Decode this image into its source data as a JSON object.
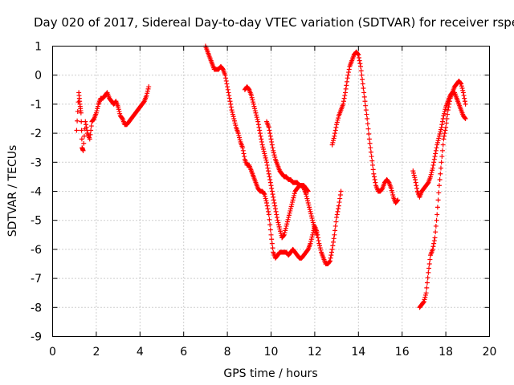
{
  "chart_data": {
    "type": "scatter",
    "title": "Day 020 of 2017, Sidereal Day-to-day VTEC variation (SDTVAR) for receiver rspe",
    "xlabel": "GPS time / hours",
    "ylabel": "SDTVAR / TECUs",
    "xlim": [
      0,
      20
    ],
    "ylim": [
      -9,
      1
    ],
    "xticks": [
      0,
      2,
      4,
      6,
      8,
      10,
      12,
      14,
      16,
      18,
      20
    ],
    "yticks": [
      1,
      0,
      -1,
      -2,
      -3,
      -4,
      -5,
      -6,
      -7,
      -8,
      -9
    ],
    "grid": true,
    "marker": "plus",
    "color": "#ff0000",
    "series": [
      {
        "name": "segment-1",
        "x": [
          1.1,
          1.2,
          1.25,
          1.3,
          1.35,
          1.4,
          1.5,
          1.6,
          1.7,
          1.8,
          1.9,
          2.0,
          2.1,
          2.2,
          2.3,
          2.4,
          2.5,
          2.6,
          2.7,
          2.8,
          2.9,
          3.0,
          3.1,
          3.2,
          3.3,
          3.4,
          3.5,
          3.6,
          3.7,
          3.8,
          3.9,
          4.0,
          4.1,
          4.2,
          4.3,
          4.4
        ],
        "y": [
          -1.9,
          -0.6,
          -1.0,
          -1.3,
          -2.5,
          -2.6,
          -1.6,
          -2.0,
          -2.2,
          -1.6,
          -1.5,
          -1.3,
          -1.0,
          -0.8,
          -0.8,
          -0.7,
          -0.6,
          -0.8,
          -0.9,
          -1.0,
          -0.9,
          -1.1,
          -1.4,
          -1.5,
          -1.7,
          -1.7,
          -1.6,
          -1.5,
          -1.4,
          -1.3,
          -1.2,
          -1.1,
          -1.0,
          -0.9,
          -0.7,
          -0.4
        ]
      },
      {
        "name": "segment-2",
        "x": [
          7.0,
          7.1,
          7.2,
          7.3,
          7.4,
          7.5,
          7.6,
          7.7,
          7.8,
          7.9,
          8.0,
          8.1,
          8.2,
          8.3,
          8.4,
          8.5,
          8.6,
          8.7,
          8.8,
          8.9,
          9.0,
          9.1,
          9.2,
          9.3,
          9.4,
          9.5,
          9.6,
          9.7,
          9.8,
          9.9,
          10.0,
          10.1,
          10.2,
          10.3,
          10.4,
          10.5,
          10.6,
          10.7,
          10.8,
          10.9,
          11.0,
          11.1,
          11.2,
          11.3,
          11.4,
          11.5,
          11.6,
          11.7,
          11.8,
          11.9,
          12.0,
          12.1,
          12.2,
          12.3,
          12.4,
          12.5,
          12.6,
          12.7,
          12.8,
          12.9,
          13.0,
          13.1,
          13.2
        ],
        "y": [
          1.0,
          0.8,
          0.6,
          0.4,
          0.2,
          0.2,
          0.2,
          0.3,
          0.2,
          0.0,
          -0.4,
          -0.8,
          -1.2,
          -1.5,
          -1.8,
          -2.0,
          -2.3,
          -2.5,
          -2.9,
          -3.1,
          -3.1,
          -3.3,
          -3.5,
          -3.7,
          -3.9,
          -4.0,
          -4.0,
          -4.1,
          -4.4,
          -4.8,
          -5.5,
          -6.1,
          -6.3,
          -6.2,
          -6.1,
          -6.1,
          -6.1,
          -6.1,
          -6.2,
          -6.1,
          -6.0,
          -6.1,
          -6.2,
          -6.3,
          -6.3,
          -6.2,
          -6.1,
          -6.0,
          -5.8,
          -5.5,
          -5.2,
          -5.4,
          -5.8,
          -6.1,
          -6.3,
          -6.5,
          -6.5,
          -6.4,
          -6.0,
          -5.5,
          -4.9,
          -4.5,
          -4.0
        ]
      },
      {
        "name": "segment-3",
        "x": [
          8.8,
          8.9,
          9.0,
          9.1,
          9.2,
          9.3,
          9.4,
          9.5,
          9.6,
          9.7,
          9.8,
          9.9,
          10.0,
          10.1,
          10.2,
          10.3,
          10.4,
          10.5,
          10.6,
          10.7,
          10.8,
          10.9,
          11.0,
          11.1,
          11.2,
          11.3,
          11.4,
          11.5,
          11.6,
          11.7,
          11.8,
          11.9,
          12.0,
          12.1
        ],
        "y": [
          -0.5,
          -0.4,
          -0.5,
          -0.7,
          -1.0,
          -1.3,
          -1.6,
          -2.0,
          -2.4,
          -2.7,
          -3.0,
          -3.4,
          -3.8,
          -4.2,
          -4.6,
          -5.0,
          -5.3,
          -5.6,
          -5.5,
          -5.2,
          -4.9,
          -4.6,
          -4.3,
          -4.0,
          -3.9,
          -3.8,
          -3.8,
          -3.9,
          -4.1,
          -4.4,
          -4.7,
          -5.0,
          -5.3,
          -5.5
        ]
      },
      {
        "name": "segment-4",
        "x": [
          9.8,
          9.9,
          10.0,
          10.1,
          10.2,
          10.3,
          10.4,
          10.5,
          10.6,
          10.7,
          10.8,
          10.9,
          11.0,
          11.1,
          11.2,
          11.3,
          11.4,
          11.5,
          11.6,
          11.7
        ],
        "y": [
          -1.6,
          -1.8,
          -2.2,
          -2.6,
          -2.9,
          -3.1,
          -3.3,
          -3.4,
          -3.5,
          -3.5,
          -3.6,
          -3.6,
          -3.7,
          -3.7,
          -3.7,
          -3.8,
          -3.8,
          -3.8,
          -3.9,
          -4.0
        ]
      },
      {
        "name": "segment-5",
        "x": [
          12.8,
          12.9,
          13.0,
          13.1,
          13.2,
          13.3,
          13.4,
          13.5,
          13.6,
          13.7,
          13.8,
          13.9,
          14.0,
          14.1,
          14.2,
          14.3,
          14.4,
          14.5,
          14.6,
          14.7,
          14.8,
          14.9,
          15.0,
          15.1,
          15.2,
          15.3,
          15.4,
          15.5,
          15.6,
          15.7,
          15.8
        ],
        "y": [
          -2.4,
          -2.1,
          -1.7,
          -1.4,
          -1.2,
          -1.0,
          -0.6,
          -0.1,
          0.3,
          0.5,
          0.7,
          0.8,
          0.7,
          0.3,
          -0.3,
          -0.9,
          -1.5,
          -2.2,
          -2.8,
          -3.4,
          -3.8,
          -4.0,
          -4.0,
          -3.9,
          -3.7,
          -3.6,
          -3.7,
          -3.9,
          -4.2,
          -4.4,
          -4.3
        ]
      },
      {
        "name": "segment-6",
        "x": [
          16.5,
          16.6,
          16.7,
          16.8,
          16.9,
          17.0,
          17.1,
          17.2,
          17.3,
          17.4,
          17.5,
          17.6,
          17.7,
          17.8,
          17.9,
          18.0,
          18.1,
          18.2,
          18.3,
          18.4,
          18.5,
          18.6,
          18.7,
          18.8,
          18.9
        ],
        "y": [
          -3.3,
          -3.6,
          -4.0,
          -4.2,
          -4.0,
          -3.9,
          -3.8,
          -3.7,
          -3.5,
          -3.2,
          -2.8,
          -2.4,
          -2.1,
          -1.8,
          -1.4,
          -1.1,
          -0.9,
          -0.7,
          -0.6,
          -0.6,
          -0.8,
          -1.0,
          -1.2,
          -1.4,
          -1.5
        ]
      },
      {
        "name": "segment-7",
        "x": [
          16.8,
          16.9,
          17.0,
          17.1,
          17.2,
          17.3,
          17.4,
          17.5,
          17.6,
          17.7,
          17.8,
          17.9,
          18.0,
          18.1,
          18.2,
          18.3,
          18.4,
          18.5,
          18.6,
          18.7,
          18.8,
          18.9
        ],
        "y": [
          -8.0,
          -7.9,
          -7.8,
          -7.5,
          -6.8,
          -6.2,
          -6.0,
          -5.6,
          -4.8,
          -3.8,
          -3.0,
          -2.2,
          -1.8,
          -1.2,
          -0.8,
          -0.6,
          -0.4,
          -0.3,
          -0.2,
          -0.3,
          -0.6,
          -1.0
        ]
      }
    ]
  }
}
